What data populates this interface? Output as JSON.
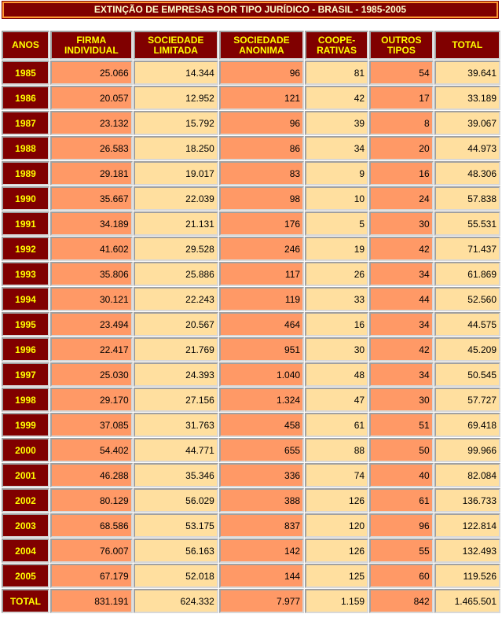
{
  "title": "EXTINÇÃO DE EMPRESAS POR TIPO JURÍDICO - BRASIL - 1985-2005",
  "colors": {
    "header_bg": "#800000",
    "header_text": "#ffff00",
    "orange_cell": "#ff9966",
    "cream_cell": "#ffdf9f"
  },
  "columns": [
    [
      "ANOS"
    ],
    [
      "FIRMA",
      "INDIVIDUAL"
    ],
    [
      "SOCIEDADE",
      "LIMITADA"
    ],
    [
      "SOCIEDADE",
      "ANONIMA"
    ],
    [
      "COOPE-",
      "RATIVAS"
    ],
    [
      "OUTROS",
      "TIPOS"
    ],
    [
      "TOTAL"
    ]
  ],
  "rows": [
    [
      "1985",
      "25.066",
      "14.344",
      "96",
      "81",
      "54",
      "39.641"
    ],
    [
      "1986",
      "20.057",
      "12.952",
      "121",
      "42",
      "17",
      "33.189"
    ],
    [
      "1987",
      "23.132",
      "15.792",
      "96",
      "39",
      "8",
      "39.067"
    ],
    [
      "1988",
      "26.583",
      "18.250",
      "86",
      "34",
      "20",
      "44.973"
    ],
    [
      "1989",
      "29.181",
      "19.017",
      "83",
      "9",
      "16",
      "48.306"
    ],
    [
      "1990",
      "35.667",
      "22.039",
      "98",
      "10",
      "24",
      "57.838"
    ],
    [
      "1991",
      "34.189",
      "21.131",
      "176",
      "5",
      "30",
      "55.531"
    ],
    [
      "1992",
      "41.602",
      "29.528",
      "246",
      "19",
      "42",
      "71.437"
    ],
    [
      "1993",
      "35.806",
      "25.886",
      "117",
      "26",
      "34",
      "61.869"
    ],
    [
      "1994",
      "30.121",
      "22.243",
      "119",
      "33",
      "44",
      "52.560"
    ],
    [
      "1995",
      "23.494",
      "20.567",
      "464",
      "16",
      "34",
      "44.575"
    ],
    [
      "1996",
      "22.417",
      "21.769",
      "951",
      "30",
      "42",
      "45.209"
    ],
    [
      "1997",
      "25.030",
      "24.393",
      "1.040",
      "48",
      "34",
      "50.545"
    ],
    [
      "1998",
      "29.170",
      "27.156",
      "1.324",
      "47",
      "30",
      "57.727"
    ],
    [
      "1999",
      "37.085",
      "31.763",
      "458",
      "61",
      "51",
      "69.418"
    ],
    [
      "2000",
      "54.402",
      "44.771",
      "655",
      "88",
      "50",
      "99.966"
    ],
    [
      "2001",
      "46.288",
      "35.346",
      "336",
      "74",
      "40",
      "82.084"
    ],
    [
      "2002",
      "80.129",
      "56.029",
      "388",
      "126",
      "61",
      "136.733"
    ],
    [
      "2003",
      "68.586",
      "53.175",
      "837",
      "120",
      "96",
      "122.814"
    ],
    [
      "2004",
      "76.007",
      "56.163",
      "142",
      "126",
      "55",
      "132.493"
    ],
    [
      "2005",
      "67.179",
      "52.018",
      "144",
      "125",
      "60",
      "119.526"
    ],
    [
      "TOTAL",
      "831.191",
      "624.332",
      "7.977",
      "1.159",
      "842",
      "1.465.501"
    ]
  ]
}
